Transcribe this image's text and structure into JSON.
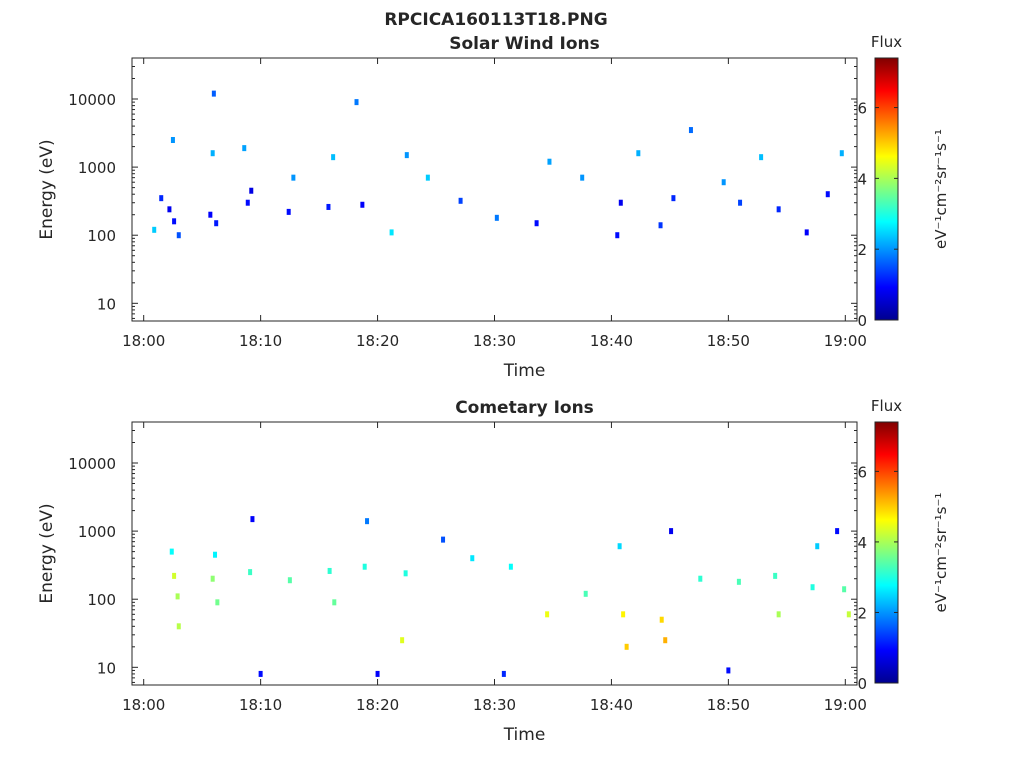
{
  "figure": {
    "suptitle": "RPCICA160113T18.PNG"
  },
  "colorbar": {
    "title": "Flux",
    "label": "eV⁻¹cm⁻²sr⁻¹s⁻¹",
    "range": [
      0,
      7.4
    ],
    "ticks": [
      "0",
      "2",
      "4",
      "6"
    ],
    "colormap": "jet",
    "colors": [
      "#00008f",
      "#0000ff",
      "#0080ff",
      "#00ffff",
      "#80ff80",
      "#ffff00",
      "#ff8000",
      "#ff0000",
      "#800000"
    ]
  },
  "chart_data": [
    {
      "type": "heatmap",
      "title": "Solar Wind Ions",
      "xlabel": "Time",
      "ylabel": "Energy (eV)",
      "yscale": "log",
      "ylim": [
        5.5,
        40000
      ],
      "xlim": [
        "17:59",
        "19:01"
      ],
      "xticks": [
        "18:00",
        "18:10",
        "18:20",
        "18:30",
        "18:40",
        "18:50",
        "19:00"
      ],
      "yticks": [
        "10",
        "100",
        "1000",
        "10000"
      ],
      "cells": [
        {
          "t": 0.9,
          "e": 120,
          "v": 2.4
        },
        {
          "t": 1.5,
          "e": 350,
          "v": 1.2
        },
        {
          "t": 2.2,
          "e": 240,
          "v": 0.8
        },
        {
          "t": 2.6,
          "e": 160,
          "v": 1.0
        },
        {
          "t": 2.5,
          "e": 2500.0,
          "v": 2.0
        },
        {
          "t": 3.0,
          "e": 100,
          "v": 1.5
        },
        {
          "t": 5.7,
          "e": 200,
          "v": 0.9
        },
        {
          "t": 6.2,
          "e": 150,
          "v": 1.1
        },
        {
          "t": 5.9,
          "e": 1600,
          "v": 2.2
        },
        {
          "t": 6.0,
          "e": 12000,
          "v": 1.6
        },
        {
          "t": 8.9,
          "e": 300,
          "v": 1.0
        },
        {
          "t": 9.2,
          "e": 450,
          "v": 0.7
        },
        {
          "t": 8.6,
          "e": 1900,
          "v": 2.1
        },
        {
          "t": 12.4,
          "e": 220,
          "v": 1.0
        },
        {
          "t": 12.8,
          "e": 700,
          "v": 2.0
        },
        {
          "t": 15.8,
          "e": 260,
          "v": 1.1
        },
        {
          "t": 16.2,
          "e": 1400,
          "v": 2.3
        },
        {
          "t": 18.7,
          "e": 280,
          "v": 0.9
        },
        {
          "t": 18.2,
          "e": 9000,
          "v": 1.8
        },
        {
          "t": 21.2,
          "e": 110,
          "v": 2.6
        },
        {
          "t": 22.5,
          "e": 1500,
          "v": 2.0
        },
        {
          "t": 24.3,
          "e": 700,
          "v": 2.4
        },
        {
          "t": 27.1,
          "e": 320,
          "v": 1.4
        },
        {
          "t": 30.2,
          "e": 180,
          "v": 1.8
        },
        {
          "t": 33.6,
          "e": 150,
          "v": 1.0
        },
        {
          "t": 34.7,
          "e": 1200,
          "v": 2.1
        },
        {
          "t": 37.5,
          "e": 700,
          "v": 2.0
        },
        {
          "t": 40.5,
          "e": 100,
          "v": 1.0
        },
        {
          "t": 40.8,
          "e": 300,
          "v": 0.8
        },
        {
          "t": 42.3,
          "e": 1600,
          "v": 2.2
        },
        {
          "t": 44.2,
          "e": 140,
          "v": 1.3
        },
        {
          "t": 45.3,
          "e": 350,
          "v": 1.2
        },
        {
          "t": 46.8,
          "e": 3500,
          "v": 1.7
        },
        {
          "t": 49.6,
          "e": 600,
          "v": 2.0
        },
        {
          "t": 51.0,
          "e": 300,
          "v": 1.4
        },
        {
          "t": 52.8,
          "e": 1400,
          "v": 2.3
        },
        {
          "t": 54.3,
          "e": 240,
          "v": 1.2
        },
        {
          "t": 56.7,
          "e": 110,
          "v": 0.9
        },
        {
          "t": 58.5,
          "e": 400,
          "v": 1.0
        },
        {
          "t": 59.7,
          "e": 1600,
          "v": 2.2
        }
      ]
    },
    {
      "type": "heatmap",
      "title": "Cometary Ions",
      "xlabel": "Time",
      "ylabel": "Energy (eV)",
      "yscale": "log",
      "ylim": [
        5.5,
        40000
      ],
      "xlim": [
        "17:59",
        "19:01"
      ],
      "xticks": [
        "18:00",
        "18:10",
        "18:20",
        "18:30",
        "18:40",
        "18:50",
        "19:00"
      ],
      "yticks": [
        "10",
        "100",
        "1000",
        "10000"
      ],
      "cells": [
        {
          "t": 2.6,
          "e": 220,
          "v": 4.3
        },
        {
          "t": 2.9,
          "e": 110,
          "v": 4.0
        },
        {
          "t": 3.0,
          "e": 40,
          "v": 4.1
        },
        {
          "t": 2.4,
          "e": 500,
          "v": 2.8
        },
        {
          "t": 5.9,
          "e": 200,
          "v": 3.8
        },
        {
          "t": 6.3,
          "e": 90,
          "v": 3.6
        },
        {
          "t": 6.1,
          "e": 450,
          "v": 2.7
        },
        {
          "t": 9.1,
          "e": 250,
          "v": 3.2
        },
        {
          "t": 9.3,
          "e": 1500,
          "v": 0.9
        },
        {
          "t": 12.5,
          "e": 190,
          "v": 3.4
        },
        {
          "t": 15.9,
          "e": 260,
          "v": 3.1
        },
        {
          "t": 16.3,
          "e": 90,
          "v": 3.5
        },
        {
          "t": 18.9,
          "e": 300,
          "v": 3.0
        },
        {
          "t": 19.1,
          "e": 1400,
          "v": 1.8
        },
        {
          "t": 22.4,
          "e": 240,
          "v": 3.0
        },
        {
          "t": 22.1,
          "e": 25,
          "v": 4.4
        },
        {
          "t": 25.6,
          "e": 750,
          "v": 1.5
        },
        {
          "t": 28.1,
          "e": 400,
          "v": 2.6
        },
        {
          "t": 31.4,
          "e": 300,
          "v": 2.8
        },
        {
          "t": 34.5,
          "e": 60,
          "v": 4.5
        },
        {
          "t": 37.8,
          "e": 120,
          "v": 3.3
        },
        {
          "t": 41.0,
          "e": 60,
          "v": 4.7
        },
        {
          "t": 41.3,
          "e": 20,
          "v": 5.0
        },
        {
          "t": 40.7,
          "e": 600,
          "v": 2.5
        },
        {
          "t": 44.3,
          "e": 50,
          "v": 4.9
        },
        {
          "t": 44.6,
          "e": 25,
          "v": 5.2
        },
        {
          "t": 45.1,
          "e": 1000,
          "v": 0.8
        },
        {
          "t": 47.6,
          "e": 200,
          "v": 3.1
        },
        {
          "t": 50.9,
          "e": 180,
          "v": 3.3
        },
        {
          "t": 54.0,
          "e": 220,
          "v": 3.2
        },
        {
          "t": 54.3,
          "e": 60,
          "v": 4.0
        },
        {
          "t": 57.2,
          "e": 150,
          "v": 3.0
        },
        {
          "t": 57.6,
          "e": 600,
          "v": 2.4
        },
        {
          "t": 59.9,
          "e": 140,
          "v": 3.4
        },
        {
          "t": 60.3,
          "e": 60,
          "v": 4.2
        },
        {
          "t": 59.3,
          "e": 1000,
          "v": 1.0
        },
        {
          "t": 10.0,
          "e": 8,
          "v": 1.0
        },
        {
          "t": 20.0,
          "e": 8,
          "v": 0.9
        },
        {
          "t": 30.8,
          "e": 8,
          "v": 1.2
        },
        {
          "t": 50.0,
          "e": 9,
          "v": 1.0
        }
      ]
    }
  ]
}
